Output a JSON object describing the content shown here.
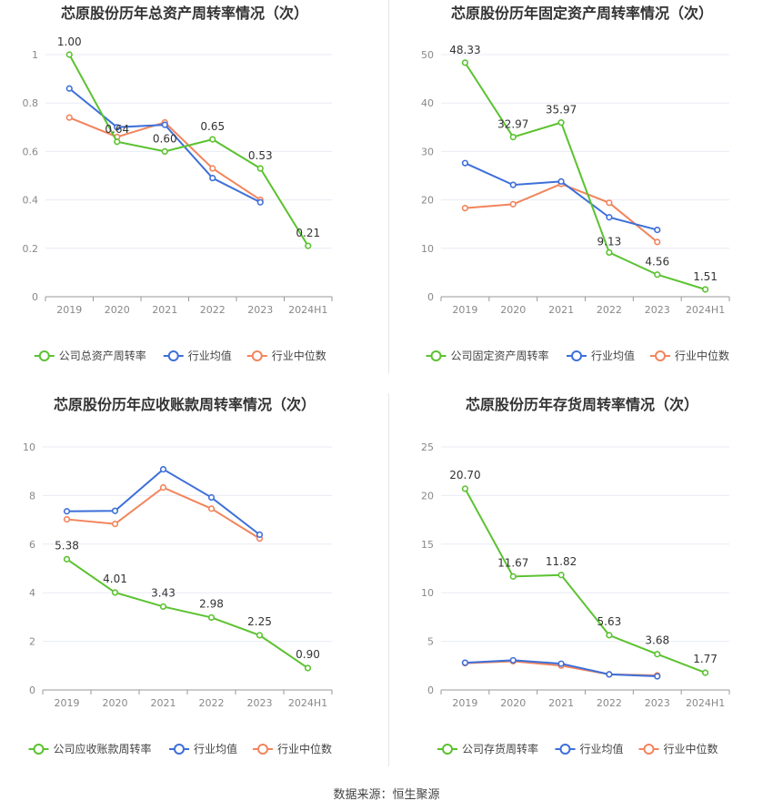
{
  "source_text": "数据来源：恒生聚源",
  "legend_labels": {
    "industry_avg": "行业均值",
    "industry_median": "行业中位数"
  },
  "colors": {
    "company": "#5bc230",
    "industry_avg": "#3d6fd9",
    "industry_median": "#f2845c",
    "grid": "#e8ebf5",
    "axis_text": "#888888",
    "title": "#333333"
  },
  "chart_data": [
    {
      "type": "line",
      "title": "芯原股份历年总资产周转率情况（次）",
      "categories": [
        "2019",
        "2020",
        "2021",
        "2022",
        "2023",
        "2024H1"
      ],
      "ylim": [
        0,
        1
      ],
      "yticks": [
        "0",
        "0.2",
        "0.4",
        "0.6",
        "0.8",
        "1"
      ],
      "ytick_values": [
        0,
        0.2,
        0.4,
        0.6,
        0.8,
        1
      ],
      "legend_company": "公司总资产周转率",
      "series": [
        {
          "name": "公司总资产周转率",
          "key": "company",
          "values": [
            1.0,
            0.64,
            0.6,
            0.65,
            0.53,
            0.21
          ],
          "labels": [
            "1.00",
            "0.64",
            "0.60",
            "0.65",
            "0.53",
            "0.21"
          ]
        },
        {
          "name": "行业均值",
          "key": "industry_avg",
          "values": [
            0.86,
            0.7,
            0.71,
            0.49,
            0.39,
            null
          ]
        },
        {
          "name": "行业中位数",
          "key": "industry_median",
          "values": [
            0.74,
            0.66,
            0.72,
            0.53,
            0.4,
            null
          ]
        }
      ]
    },
    {
      "type": "line",
      "title": "芯原股份历年固定资产周转率情况（次）",
      "categories": [
        "2019",
        "2020",
        "2021",
        "2022",
        "2023",
        "2024H1"
      ],
      "ylim": [
        0,
        50
      ],
      "yticks": [
        "0",
        "10",
        "20",
        "30",
        "40",
        "50"
      ],
      "ytick_values": [
        0,
        10,
        20,
        30,
        40,
        50
      ],
      "legend_company": "公司固定资产周转率",
      "series": [
        {
          "name": "公司固定资产周转率",
          "key": "company",
          "values": [
            48.33,
            32.97,
            35.97,
            9.13,
            4.56,
            1.51
          ],
          "labels": [
            "48.33",
            "32.97",
            "35.97",
            "9.13",
            "4.56",
            "1.51"
          ]
        },
        {
          "name": "行业均值",
          "key": "industry_avg",
          "values": [
            27.6,
            23.1,
            23.8,
            16.4,
            13.8,
            null
          ]
        },
        {
          "name": "行业中位数",
          "key": "industry_median",
          "values": [
            18.3,
            19.1,
            23.3,
            19.4,
            11.3,
            null
          ]
        }
      ]
    },
    {
      "type": "line",
      "title": "芯原股份历年应收账款周转率情况（次）",
      "categories": [
        "2019",
        "2020",
        "2021",
        "2022",
        "2023",
        "2024H1"
      ],
      "ylim": [
        0,
        10
      ],
      "yticks": [
        "0",
        "2",
        "4",
        "6",
        "8",
        "10"
      ],
      "ytick_values": [
        0,
        2,
        4,
        6,
        8,
        10
      ],
      "legend_company": "公司应收账款周转率",
      "series": [
        {
          "name": "公司应收账款周转率",
          "key": "company",
          "values": [
            5.38,
            4.01,
            3.43,
            2.98,
            2.25,
            0.9
          ],
          "labels": [
            "5.38",
            "4.01",
            "3.43",
            "2.98",
            "2.25",
            "0.90"
          ]
        },
        {
          "name": "行业均值",
          "key": "industry_avg",
          "values": [
            7.35,
            7.37,
            9.08,
            7.92,
            6.39,
            null
          ]
        },
        {
          "name": "行业中位数",
          "key": "industry_median",
          "values": [
            7.02,
            6.83,
            8.33,
            7.46,
            6.23,
            null
          ]
        }
      ]
    },
    {
      "type": "line",
      "title": "芯原股份历年存货周转率情况（次）",
      "categories": [
        "2019",
        "2020",
        "2021",
        "2022",
        "2023",
        "2024H1"
      ],
      "ylim": [
        0,
        25
      ],
      "yticks": [
        "0",
        "5",
        "10",
        "15",
        "20",
        "25"
      ],
      "ytick_values": [
        0,
        5,
        10,
        15,
        20,
        25
      ],
      "legend_company": "公司存货周转率",
      "series": [
        {
          "name": "公司存货周转率",
          "key": "company",
          "values": [
            20.7,
            11.67,
            11.82,
            5.63,
            3.68,
            1.77
          ],
          "labels": [
            "20.70",
            "11.67",
            "11.82",
            "5.63",
            "3.68",
            "1.77"
          ]
        },
        {
          "name": "行业均值",
          "key": "industry_avg",
          "values": [
            2.8,
            3.05,
            2.7,
            1.6,
            1.4,
            null
          ]
        },
        {
          "name": "行业中位数",
          "key": "industry_median",
          "values": [
            2.75,
            2.95,
            2.5,
            1.6,
            1.5,
            null
          ]
        }
      ]
    }
  ]
}
